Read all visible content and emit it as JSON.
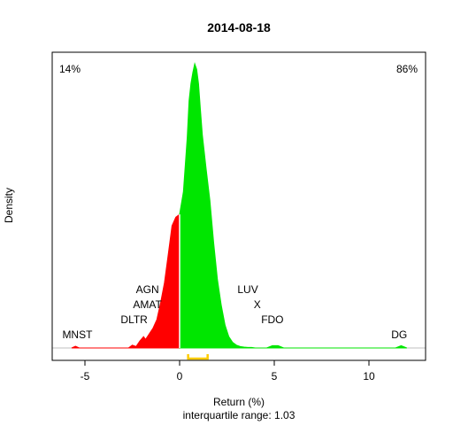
{
  "chart_data": {
    "type": "area",
    "title": "2014-08-18",
    "xlabel": "Return (%)",
    "subtitle": "interquartile range: 1.03",
    "ylabel": "Density",
    "xlim": [
      -7,
      13
    ],
    "ylim": [
      0,
      1
    ],
    "x_ticks": [
      {
        "value": -5,
        "label": "-5"
      },
      {
        "value": 0,
        "label": "0"
      },
      {
        "value": 5,
        "label": "5"
      },
      {
        "value": 10,
        "label": "10"
      }
    ],
    "left_share": {
      "label": "14%",
      "color": "#ff0000"
    },
    "right_share": {
      "label": "86%",
      "color": "#009900"
    },
    "negative_color": "#ff0000",
    "positive_color": "#00e600",
    "iqr_color": "#ffcc00",
    "iqr": [
      0.45,
      1.48
    ],
    "density": {
      "x": [
        -5.7,
        -5.5,
        -5.3,
        -2.7,
        -2.5,
        -2.3,
        -2.1,
        -1.9,
        -1.8,
        -1.6,
        -1.4,
        -1.2,
        -1.0,
        -0.8,
        -0.6,
        -0.4,
        -0.2,
        0.0,
        0.2,
        0.4,
        0.5,
        0.6,
        0.7,
        0.8,
        0.9,
        1.0,
        1.1,
        1.2,
        1.4,
        1.6,
        1.8,
        2.0,
        2.2,
        2.4,
        2.6,
        2.8,
        3.0,
        3.2,
        3.4,
        3.6,
        3.8,
        4.0,
        4.6,
        4.9,
        5.2,
        5.5,
        11.4,
        11.7,
        12.0
      ],
      "y": [
        0,
        0.006,
        0,
        0,
        0.01,
        0.005,
        0.025,
        0.04,
        0.03,
        0.05,
        0.07,
        0.1,
        0.16,
        0.23,
        0.33,
        0.43,
        0.46,
        0.47,
        0.55,
        0.74,
        0.87,
        0.93,
        0.97,
        1.0,
        0.98,
        0.93,
        0.84,
        0.75,
        0.63,
        0.52,
        0.37,
        0.24,
        0.15,
        0.08,
        0.04,
        0.02,
        0.01,
        0.005,
        0.003,
        0.002,
        0.002,
        0,
        0,
        0.008,
        0.008,
        0,
        0,
        0.008,
        0
      ]
    },
    "stock_labels": [
      {
        "text": "MNST",
        "x": -5.4,
        "level": 1
      },
      {
        "text": "DLTR",
        "x": -2.4,
        "level": 2
      },
      {
        "text": "AMAT",
        "x": -1.7,
        "level": 3
      },
      {
        "text": "AGN",
        "x": -1.7,
        "level": 4
      },
      {
        "text": "FDO",
        "x": 4.9,
        "level": 2
      },
      {
        "text": "X",
        "x": 4.1,
        "level": 3
      },
      {
        "text": "LUV",
        "x": 3.6,
        "level": 4
      },
      {
        "text": "DG",
        "x": 11.6,
        "level": 1
      }
    ]
  }
}
